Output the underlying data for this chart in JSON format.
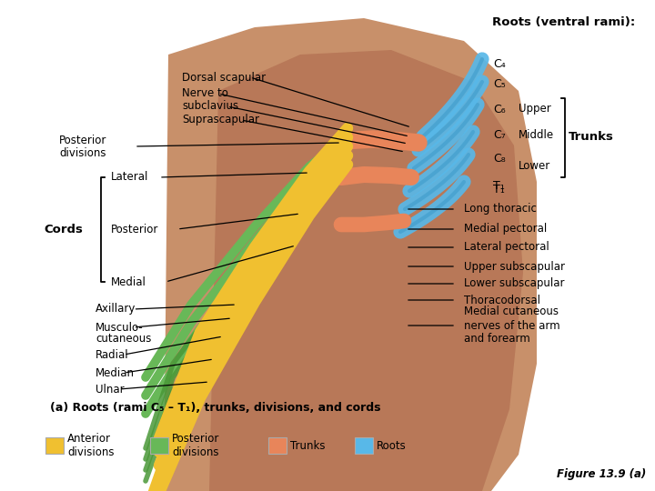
{
  "outer_bg": "#ffffff",
  "body_color": "#c8906a",
  "body_dark": "#b87858",
  "trunk_color": "#e8855a",
  "anterior_color": "#f0c030",
  "posterior_color": "#68b858",
  "root_color": "#58b8e8",
  "roots_label": "Roots (ventral rami):",
  "roots": [
    "C₄",
    "C₅",
    "C₆",
    "C₇",
    "C₈",
    "T₁"
  ],
  "trunk_names": [
    "Upper",
    "Middle",
    "Lower"
  ],
  "caption": "(a) Roots (rami C₅ – T₁), trunks, divisions, and cords",
  "figure_label": "Figure 13.9 (a)",
  "legend_items": [
    {
      "label": "Anterior\ndivisions",
      "color": "#f0c030"
    },
    {
      "label": "Posterior\ndivisions",
      "color": "#68b858"
    },
    {
      "label": "Trunks",
      "color": "#e8855a"
    },
    {
      "label": "Roots",
      "color": "#58b8e8"
    }
  ]
}
